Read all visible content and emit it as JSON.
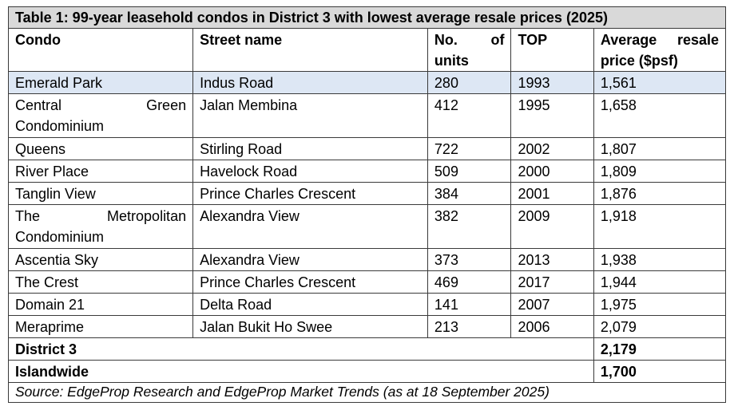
{
  "title": "Table 1: 99-year leasehold condos in District 3 with lowest average resale prices (2025)",
  "headers": {
    "condo": "Condo",
    "street": "Street name",
    "units_a": "No.",
    "units_b": "of",
    "units_c": "units",
    "top": "TOP",
    "price_a": "Average",
    "price_b": "resale",
    "price_c": "price ($psf)"
  },
  "rows": [
    {
      "condo_a": "Emerald Park",
      "condo_b": "",
      "condo_c": "",
      "street": "Indus Road",
      "units": "280",
      "top": "1993",
      "price": "1,561"
    },
    {
      "condo_a": "Central",
      "condo_b": "Green",
      "condo_c": "Condominium",
      "street": "Jalan Membina",
      "units": "412",
      "top": "1995",
      "price": "1,658"
    },
    {
      "condo_a": "Queens",
      "condo_b": "",
      "condo_c": "",
      "street": "Stirling Road",
      "units": "722",
      "top": "2002",
      "price": "1,807"
    },
    {
      "condo_a": "River Place",
      "condo_b": "",
      "condo_c": "",
      "street": "Havelock Road",
      "units": "509",
      "top": "2000",
      "price": "1,809"
    },
    {
      "condo_a": "Tanglin View",
      "condo_b": "",
      "condo_c": "",
      "street": "Prince Charles Crescent",
      "units": "384",
      "top": "2001",
      "price": "1,876"
    },
    {
      "condo_a": "The",
      "condo_b": "Metropolitan",
      "condo_c": "Condominium",
      "street": "Alexandra View",
      "units": "382",
      "top": "2009",
      "price": "1,918"
    },
    {
      "condo_a": "Ascentia Sky",
      "condo_b": "",
      "condo_c": "",
      "street": "Alexandra View",
      "units": "373",
      "top": "2013",
      "price": "1,938"
    },
    {
      "condo_a": "The Crest",
      "condo_b": "",
      "condo_c": "",
      "street": "Prince Charles Crescent",
      "units": "469",
      "top": "2017",
      "price": "1,944"
    },
    {
      "condo_a": "Domain 21",
      "condo_b": "",
      "condo_c": "",
      "street": "Delta Road",
      "units": "141",
      "top": "2007",
      "price": "1,975"
    },
    {
      "condo_a": "Meraprime",
      "condo_b": "",
      "condo_c": "",
      "street": "Jalan Bukit Ho Swee",
      "units": "213",
      "top": "2006",
      "price": "2,079"
    }
  ],
  "summary": [
    {
      "label": "District 3",
      "price": "2,179"
    },
    {
      "label": "Islandwide",
      "price": "1,700"
    }
  ],
  "source": "Source: EdgeProp Research and EdgeProp Market Trends (as at 18 September 2025)",
  "colors": {
    "title_bg": "#d9d9d9",
    "highlight_row_bg": "#dde7f4",
    "border": "#3a3a3a"
  }
}
